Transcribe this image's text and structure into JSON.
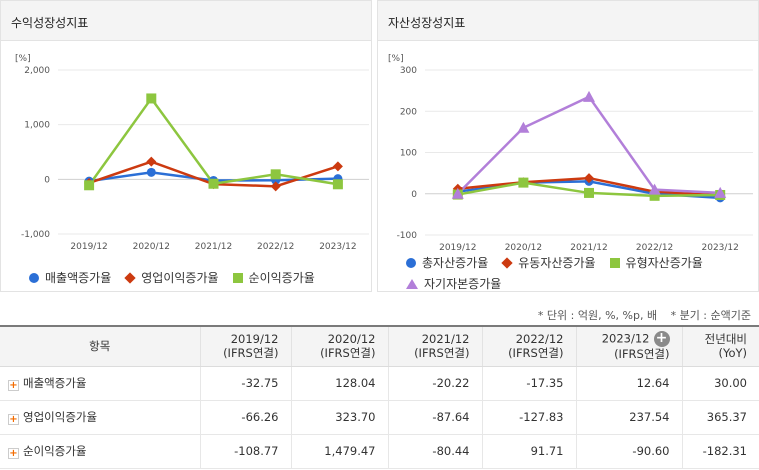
{
  "charts": [
    {
      "panel_title": "수익성장성지표",
      "unit": "[%]",
      "chart_data": {
        "type": "line",
        "categories": [
          "2019/12",
          "2020/12",
          "2021/12",
          "2022/12",
          "2023/12"
        ],
        "yticks": [
          -1000,
          0,
          1000,
          2000
        ],
        "yticklabels": [
          "-1,000",
          "0",
          "1,000",
          "2,000"
        ],
        "ylim": [
          -1000,
          2000
        ],
        "series": [
          {
            "name": "매출액증가율",
            "color": "#2b6fd6",
            "marker": "circle",
            "values": [
              -32.75,
              128.04,
              -20.22,
              -17.35,
              12.64
            ]
          },
          {
            "name": "영업이익증가율",
            "color": "#cc3a10",
            "marker": "diamond",
            "values": [
              -66.26,
              323.7,
              -87.64,
              -127.83,
              237.54
            ]
          },
          {
            "name": "순이익증가율",
            "color": "#8dc63f",
            "marker": "square",
            "values": [
              -108.77,
              1479.47,
              -80.44,
              91.71,
              -90.6
            ]
          }
        ]
      }
    },
    {
      "panel_title": "자산성장성지표",
      "unit": "[%]",
      "chart_data": {
        "type": "line",
        "categories": [
          "2019/12",
          "2020/12",
          "2021/12",
          "2022/12",
          "2023/12"
        ],
        "yticks": [
          -100,
          0,
          100,
          200,
          300
        ],
        "yticklabels": [
          "-100",
          "0",
          "100",
          "200",
          "300"
        ],
        "ylim": [
          -100,
          300
        ],
        "series": [
          {
            "name": "총자산증가율",
            "color": "#2b6fd6",
            "marker": "circle",
            "values": [
              5,
              27,
              30,
              0,
              -10
            ]
          },
          {
            "name": "유동자산증가율",
            "color": "#cc3a10",
            "marker": "diamond",
            "values": [
              12,
              28,
              38,
              5,
              -4
            ]
          },
          {
            "name": "유형자산증가율",
            "color": "#8dc63f",
            "marker": "square",
            "values": [
              -2,
              27,
              2,
              -5,
              -3
            ]
          },
          {
            "name": "자기자본증가율",
            "color": "#b27fd9",
            "marker": "triangle",
            "values": [
              0,
              160,
              235,
              10,
              2
            ]
          }
        ]
      }
    }
  ],
  "notes": {
    "unit": "* 단위 : 억원, %, %p, 배",
    "period": "* 분기 : 순액기준"
  },
  "table": {
    "header_name": "항목",
    "columns": [
      {
        "line1": "2019/12",
        "line2": "(IFRS연결)"
      },
      {
        "line1": "2020/12",
        "line2": "(IFRS연결)"
      },
      {
        "line1": "2021/12",
        "line2": "(IFRS연결)"
      },
      {
        "line1": "2022/12",
        "line2": "(IFRS연결)"
      },
      {
        "line1": "2023/12",
        "line2": "(IFRS연결)"
      },
      {
        "line1": "전년대비",
        "line2": "(YoY)"
      }
    ],
    "rows": [
      {
        "name": "매출액증가율",
        "values": [
          "-32.75",
          "128.04",
          "-20.22",
          "-17.35",
          "12.64",
          "30.00"
        ]
      },
      {
        "name": "영업이익증가율",
        "values": [
          "-66.26",
          "323.70",
          "-87.64",
          "-127.83",
          "237.54",
          "365.37"
        ]
      },
      {
        "name": "순이익증가율",
        "values": [
          "-108.77",
          "1,479.47",
          "-80.44",
          "91.71",
          "-90.60",
          "-182.31"
        ]
      }
    ]
  }
}
